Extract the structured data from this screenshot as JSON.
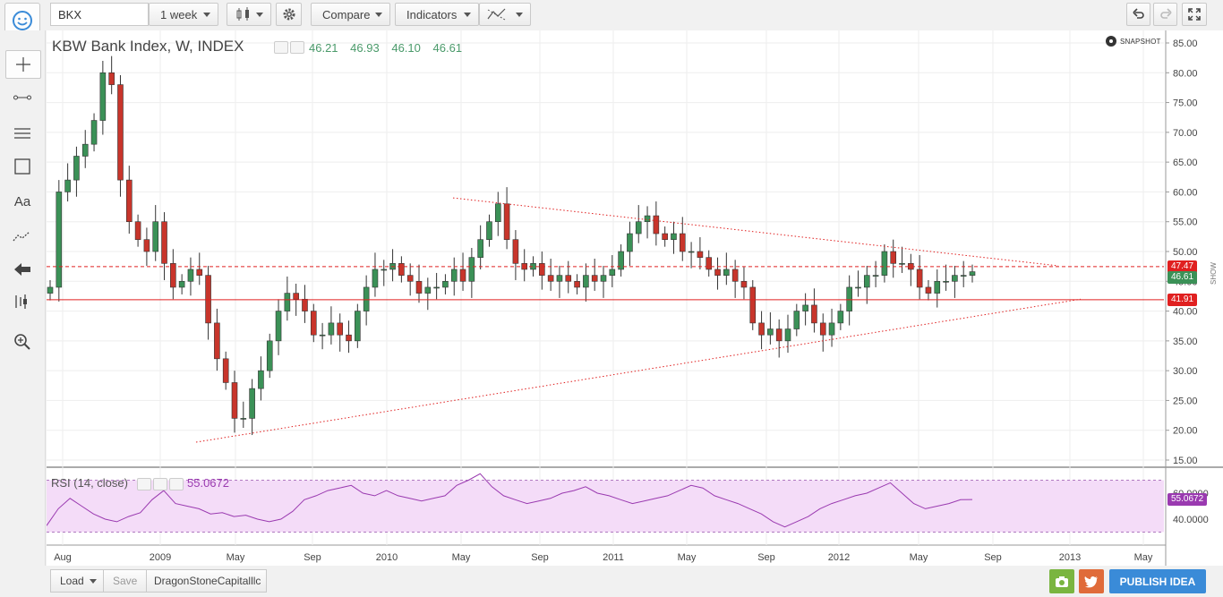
{
  "toolbar": {
    "symbol": "BKX",
    "interval": "1 week",
    "compare_label": "Compare",
    "indicators_label": "Indicators"
  },
  "chart_header": {
    "title": "KBW Bank Index, W, INDEX",
    "open": "46.21",
    "high": "46.93",
    "low": "46.10",
    "close": "46.61"
  },
  "snapshot_label": "SNAPSHOT",
  "show_label": "SHOW",
  "rsi": {
    "label": "RSI (14, close)",
    "value": "55.0672"
  },
  "price_labels": {
    "resistance": "47.47",
    "support": "41.91",
    "last": "46.61"
  },
  "bottom": {
    "load_label": "Load",
    "save_label": "Save",
    "user": "DragonStoneCapitalllc",
    "publish_label": "PUBLISH IDEA"
  },
  "colors": {
    "up": "#3b9157",
    "down": "#c8352b",
    "rsi": "#9a3ab0",
    "rsi_band": "#f4dcf8",
    "resistance": "#e02020",
    "accent": "#3a8bd8"
  },
  "chart_data": {
    "type": "candlestick",
    "title": "KBW Bank Index, W, INDEX",
    "y_ticks": [
      "85.00",
      "80.00",
      "75.00",
      "70.00",
      "65.00",
      "60.00",
      "55.00",
      "50.00",
      "45.00",
      "40.00",
      "35.00",
      "30.00",
      "25.00",
      "20.00",
      "15.00"
    ],
    "ylim": [
      15,
      85
    ],
    "x_ticks": [
      "Aug",
      "2009",
      "May",
      "Sep",
      "2010",
      "May",
      "Sep",
      "2011",
      "May",
      "Sep",
      "2012",
      "May",
      "Sep",
      "2013",
      "May"
    ],
    "rsi_ticks": [
      "60.0000",
      "40.0000"
    ],
    "rsi_ylim": [
      20,
      80
    ],
    "horizontal_lines": [
      {
        "value": 47.47,
        "style": "dashed"
      },
      {
        "value": 41.91,
        "style": "solid"
      }
    ],
    "trendlines": [
      {
        "from": [
          "2009-03",
          18.0
        ],
        "to": [
          "2010-04",
          59.0
        ],
        "style": "none"
      },
      {
        "from": [
          "2010-04",
          59.0
        ],
        "to": [
          "2012-12",
          47.5
        ],
        "style": "dotted"
      },
      {
        "from": [
          "2009-03",
          18.0
        ],
        "to": [
          "2012-12",
          42.0
        ],
        "style": "dotted"
      }
    ],
    "close_series_approx": [
      44,
      60,
      62,
      66,
      68,
      72,
      80,
      78,
      62,
      55,
      52,
      50,
      55,
      48,
      44,
      45,
      47,
      46,
      38,
      32,
      28,
      22,
      22,
      27,
      30,
      35,
      40,
      43,
      42,
      40,
      36,
      36,
      38,
      36,
      35,
      40,
      44,
      47,
      47,
      48,
      46,
      45,
      43,
      44,
      44,
      45,
      47,
      45,
      49,
      52,
      55,
      58,
      52,
      48,
      47,
      48,
      46,
      45,
      46,
      45,
      44,
      46,
      45,
      46,
      47,
      50,
      53,
      55,
      56,
      53,
      52,
      53,
      50,
      50,
      49,
      47,
      46,
      47,
      45,
      44,
      38,
      36,
      37,
      35,
      37,
      40,
      41,
      38,
      36,
      38,
      40,
      44,
      44,
      46,
      46,
      50,
      48,
      48,
      47,
      44,
      43,
      45,
      45,
      46,
      46,
      46.61
    ],
    "rsi_series_approx": [
      35,
      48,
      56,
      50,
      44,
      40,
      38,
      42,
      45,
      55,
      62,
      52,
      50,
      48,
      44,
      45,
      42,
      43,
      40,
      38,
      40,
      46,
      55,
      58,
      62,
      64,
      66,
      60,
      58,
      62,
      58,
      56,
      54,
      56,
      58,
      66,
      70,
      75,
      65,
      58,
      55,
      52,
      54,
      56,
      60,
      62,
      65,
      60,
      58,
      55,
      52,
      54,
      56,
      58,
      62,
      66,
      64,
      58,
      55,
      52,
      48,
      44,
      38,
      34,
      38,
      42,
      48,
      52,
      55,
      58,
      60,
      64,
      68,
      60,
      52,
      48,
      50,
      52,
      55,
      55.07
    ]
  }
}
